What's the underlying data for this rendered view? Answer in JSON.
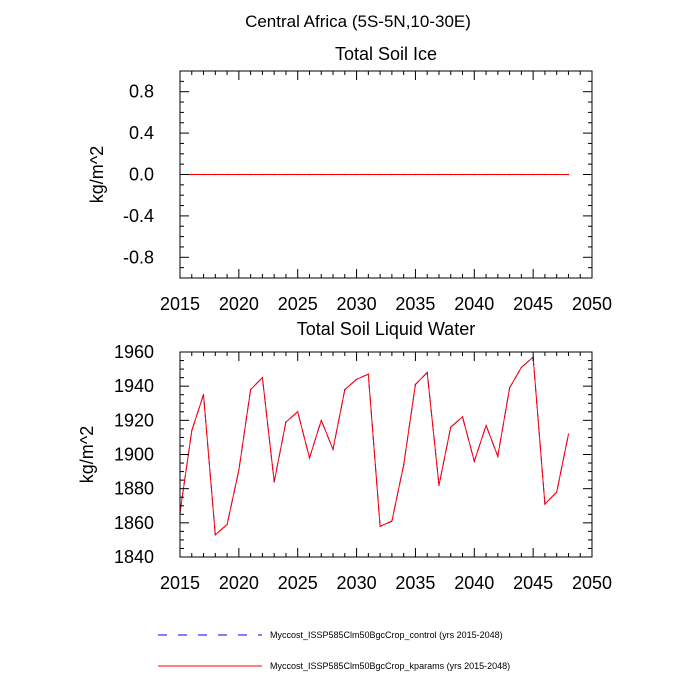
{
  "header": {
    "region_title": "Central Africa (5S-5N,10-30E)"
  },
  "chart_data": [
    {
      "type": "line",
      "title": "Total Soil Ice",
      "xlabel": "",
      "ylabel": "kg/m^2",
      "xlim": [
        2015,
        2050
      ],
      "ylim": [
        -1.0,
        1.0
      ],
      "x_ticks": [
        2015,
        2020,
        2025,
        2030,
        2035,
        2040,
        2045,
        2050
      ],
      "x_tick_labels": [
        "2015",
        "2020",
        "2025",
        "2030",
        "2035",
        "2040",
        "2045",
        "2050"
      ],
      "y_ticks": [
        -0.8,
        -0.4,
        0.0,
        0.4,
        0.8
      ],
      "y_tick_labels": [
        "-0.8",
        "-0.4",
        "0.0",
        "0.4",
        "0.8"
      ],
      "grid": false,
      "x": [
        2015,
        2016,
        2017,
        2018,
        2019,
        2020,
        2021,
        2022,
        2023,
        2024,
        2025,
        2026,
        2027,
        2028,
        2029,
        2030,
        2031,
        2032,
        2033,
        2034,
        2035,
        2036,
        2037,
        2038,
        2039,
        2040,
        2041,
        2042,
        2043,
        2044,
        2045,
        2046,
        2047,
        2048
      ],
      "series": [
        {
          "name": "Myccost_ISSP585Clm50BgcCrop_control (yrs 2015-2048)",
          "color": "#0000ff",
          "dash": "dashed",
          "values": [
            0,
            0,
            0,
            0,
            0,
            0,
            0,
            0,
            0,
            0,
            0,
            0,
            0,
            0,
            0,
            0,
            0,
            0,
            0,
            0,
            0,
            0,
            0,
            0,
            0,
            0,
            0,
            0,
            0,
            0,
            0,
            0,
            0,
            0
          ]
        },
        {
          "name": "Myccost_ISSP585Clm50BgcCrop_kparams (yrs 2015-2048)",
          "color": "#ff0000",
          "dash": "solid",
          "values": [
            0,
            0,
            0,
            0,
            0,
            0,
            0,
            0,
            0,
            0,
            0,
            0,
            0,
            0,
            0,
            0,
            0,
            0,
            0,
            0,
            0,
            0,
            0,
            0,
            0,
            0,
            0,
            0,
            0,
            0,
            0,
            0,
            0,
            0
          ]
        }
      ]
    },
    {
      "type": "line",
      "title": "Total Soil Liquid Water",
      "xlabel": "",
      "ylabel": "kg/m^2",
      "xlim": [
        2015,
        2050
      ],
      "ylim": [
        1840,
        1960
      ],
      "x_ticks": [
        2015,
        2020,
        2025,
        2030,
        2035,
        2040,
        2045,
        2050
      ],
      "x_tick_labels": [
        "2015",
        "2020",
        "2025",
        "2030",
        "2035",
        "2040",
        "2045",
        "2050"
      ],
      "y_ticks": [
        1840,
        1860,
        1880,
        1900,
        1920,
        1940,
        1960
      ],
      "y_tick_labels": [
        "1840",
        "1860",
        "1880",
        "1900",
        "1920",
        "1940",
        "1960"
      ],
      "grid": false,
      "x": [
        2015,
        2016,
        2017,
        2018,
        2019,
        2020,
        2021,
        2022,
        2023,
        2024,
        2025,
        2026,
        2027,
        2028,
        2029,
        2030,
        2031,
        2032,
        2033,
        2034,
        2035,
        2036,
        2037,
        2038,
        2039,
        2040,
        2041,
        2042,
        2043,
        2044,
        2045,
        2046,
        2047,
        2048
      ],
      "series": [
        {
          "name": "Myccost_ISSP585Clm50BgcCrop_control (yrs 2015-2048)",
          "color": "#0000ff",
          "dash": "dashed",
          "values": [
            1866,
            1914,
            1935,
            1853,
            1859,
            1891,
            1938,
            1945,
            1884,
            1919,
            1925,
            1898,
            1920,
            1903,
            1938,
            1944,
            1947,
            1858,
            1861,
            1894,
            1941,
            1948,
            1882,
            1916,
            1922,
            1896,
            1917,
            1899,
            1939,
            1951,
            1957,
            1871,
            1878,
            1912
          ]
        },
        {
          "name": "Myccost_ISSP585Clm50BgcCrop_kparams (yrs 2015-2048)",
          "color": "#ff0000",
          "dash": "solid",
          "values": [
            1866,
            1914,
            1935,
            1853,
            1859,
            1891,
            1938,
            1945,
            1884,
            1919,
            1925,
            1898,
            1920,
            1903,
            1938,
            1944,
            1947,
            1858,
            1861,
            1894,
            1941,
            1948,
            1882,
            1916,
            1922,
            1896,
            1917,
            1899,
            1939,
            1951,
            1957,
            1871,
            1878,
            1912
          ]
        }
      ]
    }
  ],
  "legend": {
    "placement": "bottom",
    "entries": [
      {
        "label": "Myccost_ISSP585Clm50BgcCrop_control (yrs 2015-2048)",
        "color": "#0000ff",
        "dash": "dashed"
      },
      {
        "label": "Myccost_ISSP585Clm50BgcCrop_kparams (yrs 2015-2048)",
        "color": "#ff0000",
        "dash": "solid"
      }
    ]
  }
}
